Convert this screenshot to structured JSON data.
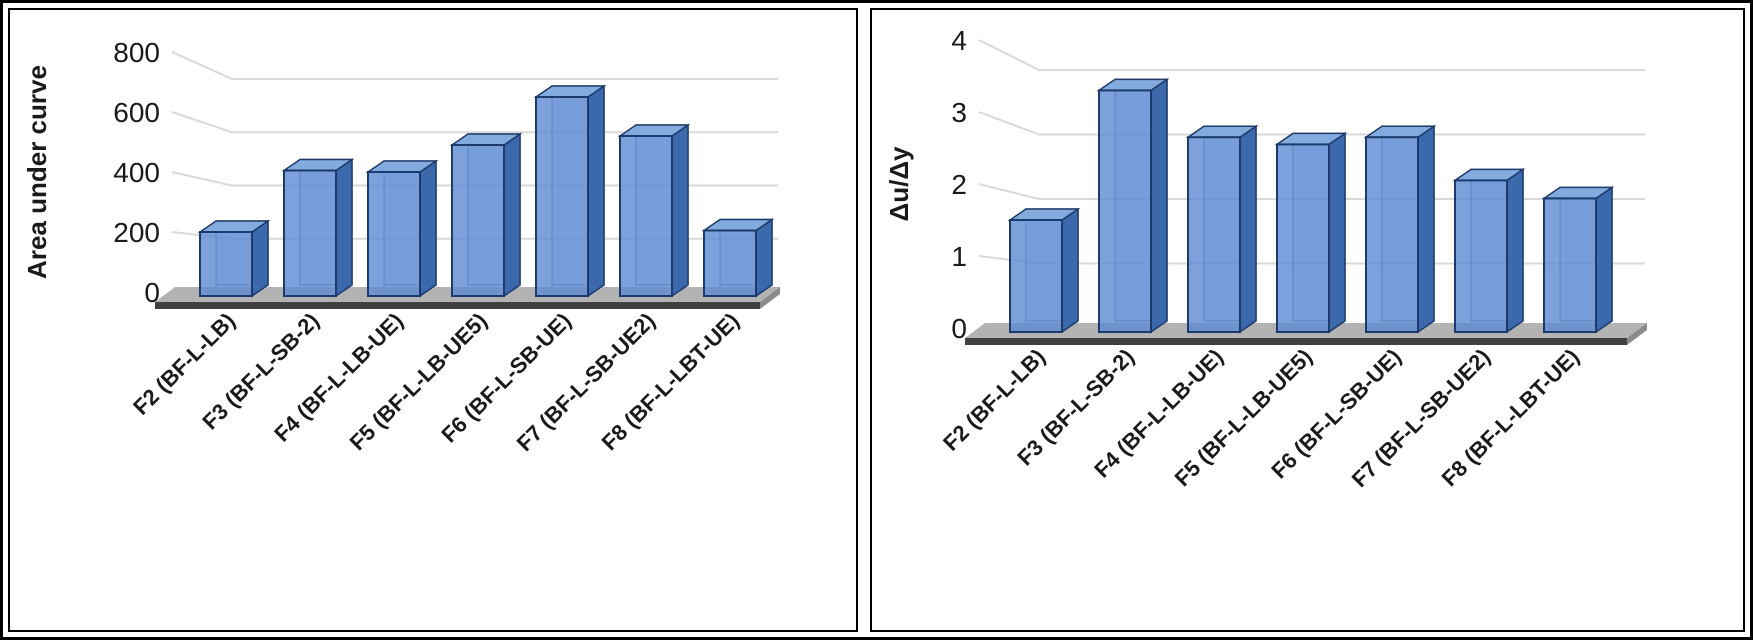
{
  "page": {
    "background": "#ffffff",
    "frame_border": "#000000"
  },
  "palette": {
    "bar_front": "#5d8ad2",
    "bar_top": "#83abde",
    "bar_side": "#3c69ab",
    "bar_edge": "#1c3a6b",
    "floor_top": "#b3b3b3",
    "floor_front": "#404040",
    "floor_side": "#8a8a8a",
    "gridline": "#d9d9d9",
    "text": "#1a1a1a"
  },
  "chart_data": [
    {
      "type": "bar",
      "style": "3d-column",
      "title": "",
      "xlabel": "",
      "ylabel": "Area under curve",
      "categories": [
        "F2 (BF-L-LB)",
        "F3 (BF-L-SB-2)",
        "F4 (BF-L-LB-UE)",
        "F5 (BF-L-LB-UE5)",
        "F6 (BF-L-SB-UE)",
        "F7 (BF-L-SB-UE2)",
        "F8 (BF-L-LBT-UE)"
      ],
      "values": [
        200,
        405,
        400,
        490,
        650,
        520,
        205
      ],
      "ylim": [
        0,
        800
      ],
      "yticks": [
        0,
        200,
        400,
        600,
        800
      ],
      "grid": true,
      "legend": false
    },
    {
      "type": "bar",
      "style": "3d-column",
      "title": "",
      "xlabel": "",
      "ylabel": "Δu/Δy",
      "categories": [
        "F2 (BF-L-LB)",
        "F3 (BF-L-SB-2)",
        "F4 (BF-L-LB-UE)",
        "F5 (BF-L-LB-UE5)",
        "F6 (BF-L-SB-UE)",
        "F7 (BF-L-SB-UE2)",
        "F8 (BF-L-LBT-UE)"
      ],
      "values": [
        1.5,
        3.3,
        2.65,
        2.55,
        2.65,
        2.05,
        1.8
      ],
      "ylim": [
        0,
        4
      ],
      "yticks": [
        0,
        1,
        2,
        3,
        4
      ],
      "grid": true,
      "legend": false
    }
  ]
}
